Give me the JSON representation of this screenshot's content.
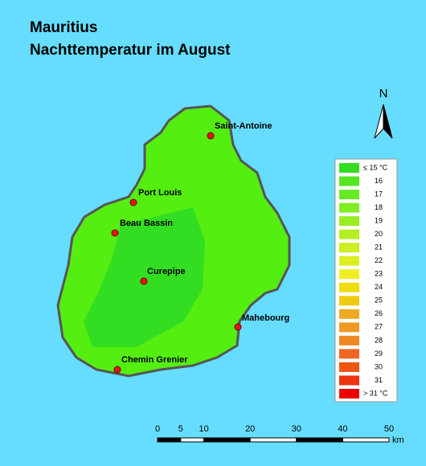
{
  "header": {
    "title": [
      "Mauritius",
      "Nachttemperatur im August"
    ]
  },
  "north_arrow": {
    "label": "N"
  },
  "cities": [
    {
      "name": "Saint-Antoine"
    },
    {
      "name": "Port Louis"
    },
    {
      "name": "Beau Bassin"
    },
    {
      "name": "Curepipe"
    },
    {
      "name": "Mahebourg"
    },
    {
      "name": "Chemin Grenier"
    }
  ],
  "legend": {
    "items": [
      {
        "label": "≤ 15 °C",
        "color": "#33dd22"
      },
      {
        "label": "16",
        "color": "#55e622"
      },
      {
        "label": "17",
        "color": "#66ea22"
      },
      {
        "label": "18",
        "color": "#7fee22"
      },
      {
        "label": "19",
        "color": "#99ee22"
      },
      {
        "label": "20",
        "color": "#b5ee22"
      },
      {
        "label": "21",
        "color": "#ccee22"
      },
      {
        "label": "22",
        "color": "#ddee22"
      },
      {
        "label": "23",
        "color": "#eeee22"
      },
      {
        "label": "24",
        "color": "#eedd11"
      },
      {
        "label": "25",
        "color": "#eecc11"
      },
      {
        "label": "26",
        "color": "#eeaa22"
      },
      {
        "label": "27",
        "color": "#ee9922"
      },
      {
        "label": "28",
        "color": "#ee8822"
      },
      {
        "label": "29",
        "color": "#ee6622"
      },
      {
        "label": "30",
        "color": "#ee5511"
      },
      {
        "label": "31",
        "color": "#ee3311"
      },
      {
        "label": "> 31 °C",
        "color": "#ee0000"
      }
    ]
  },
  "scale_bar": {
    "ticks": [
      0,
      5,
      10,
      20,
      30,
      40,
      50
    ],
    "unit": "km"
  }
}
